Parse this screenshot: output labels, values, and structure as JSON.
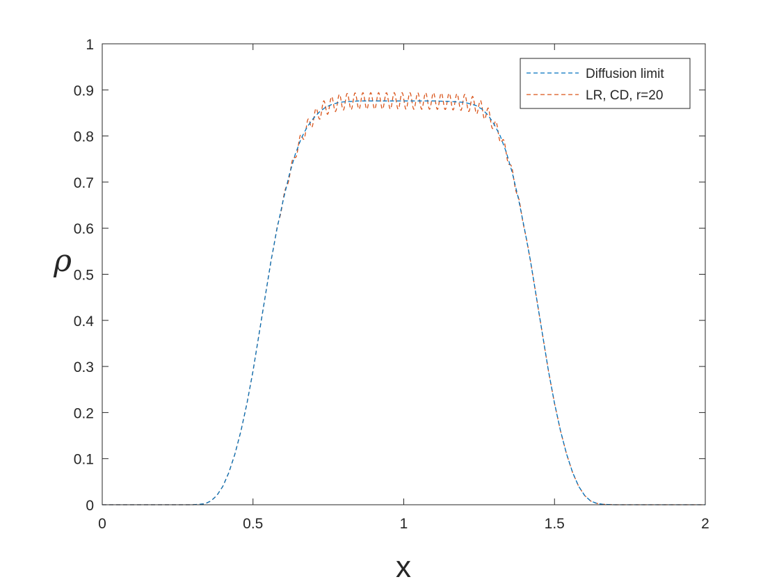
{
  "chart_data": {
    "type": "line",
    "title": "",
    "xlabel": "x",
    "ylabel": "ρ",
    "xlim": [
      0,
      2
    ],
    "ylim": [
      0,
      1
    ],
    "xticks": [
      "0",
      "0.5",
      "1",
      "1.5",
      "2"
    ],
    "yticks": [
      "0",
      "0.1",
      "0.2",
      "0.3",
      "0.4",
      "0.5",
      "0.6",
      "0.7",
      "0.8",
      "0.9",
      "1"
    ],
    "grid": false,
    "legend_position": "top-right",
    "series": [
      {
        "name": "Diffusion limit",
        "color": "#0072BD",
        "style": "dashed",
        "x": [
          0,
          0.3,
          0.34,
          0.36,
          0.38,
          0.4,
          0.42,
          0.44,
          0.46,
          0.48,
          0.5,
          0.52,
          0.54,
          0.56,
          0.58,
          0.6,
          0.62,
          0.64,
          0.66,
          0.68,
          0.7,
          0.72,
          0.74,
          0.76,
          0.78,
          0.8,
          0.85,
          0.9,
          0.95,
          1.0,
          1.05,
          1.1,
          1.15,
          1.2,
          1.22,
          1.24,
          1.26,
          1.28,
          1.3,
          1.32,
          1.34,
          1.36,
          1.38,
          1.4,
          1.42,
          1.44,
          1.46,
          1.48,
          1.5,
          1.52,
          1.54,
          1.56,
          1.58,
          1.6,
          1.62,
          1.64,
          1.66,
          1.7,
          2.0
        ],
        "y": [
          0,
          0,
          0.002,
          0.008,
          0.02,
          0.04,
          0.07,
          0.11,
          0.16,
          0.22,
          0.29,
          0.37,
          0.45,
          0.53,
          0.6,
          0.66,
          0.715,
          0.76,
          0.795,
          0.82,
          0.838,
          0.852,
          0.862,
          0.868,
          0.872,
          0.874,
          0.876,
          0.876,
          0.876,
          0.876,
          0.876,
          0.876,
          0.875,
          0.873,
          0.87,
          0.866,
          0.858,
          0.845,
          0.825,
          0.8,
          0.765,
          0.72,
          0.665,
          0.6,
          0.53,
          0.45,
          0.37,
          0.29,
          0.22,
          0.16,
          0.11,
          0.07,
          0.04,
          0.02,
          0.008,
          0.003,
          0.001,
          0,
          0
        ]
      },
      {
        "name": "LR, CD, r=20",
        "color": "#D95319",
        "style": "dashed",
        "oscillation_amplitude": 0.018,
        "oscillation_period": 0.026,
        "x": [
          0,
          0.3,
          0.34,
          0.36,
          0.38,
          0.4,
          0.42,
          0.44,
          0.46,
          0.48,
          0.5,
          0.52,
          0.54,
          0.56,
          0.58,
          0.6,
          0.62,
          0.64,
          0.66,
          0.68,
          0.7,
          0.72,
          0.74,
          0.76,
          0.78,
          0.8,
          0.85,
          0.9,
          0.95,
          1.0,
          1.05,
          1.1,
          1.15,
          1.2,
          1.22,
          1.24,
          1.26,
          1.28,
          1.3,
          1.32,
          1.34,
          1.36,
          1.38,
          1.4,
          1.42,
          1.44,
          1.46,
          1.48,
          1.5,
          1.52,
          1.54,
          1.56,
          1.58,
          1.6,
          1.62,
          1.64,
          1.66,
          1.7,
          2.0
        ],
        "y": [
          0,
          0,
          0.002,
          0.008,
          0.02,
          0.04,
          0.07,
          0.11,
          0.16,
          0.22,
          0.29,
          0.37,
          0.45,
          0.53,
          0.6,
          0.66,
          0.715,
          0.76,
          0.795,
          0.82,
          0.838,
          0.852,
          0.862,
          0.868,
          0.872,
          0.874,
          0.876,
          0.876,
          0.876,
          0.876,
          0.876,
          0.876,
          0.875,
          0.873,
          0.87,
          0.866,
          0.858,
          0.845,
          0.825,
          0.8,
          0.765,
          0.72,
          0.665,
          0.6,
          0.53,
          0.45,
          0.37,
          0.29,
          0.22,
          0.16,
          0.11,
          0.07,
          0.04,
          0.02,
          0.008,
          0.003,
          0.001,
          0,
          0
        ]
      }
    ]
  }
}
